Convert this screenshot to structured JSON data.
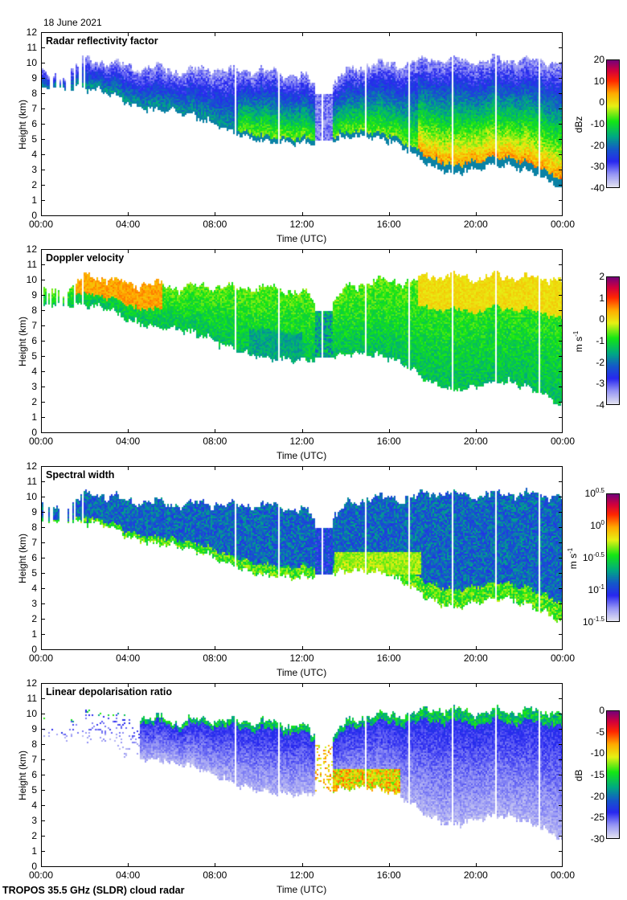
{
  "header": {
    "date": "18 June 2021"
  },
  "footer": {
    "title": "TROPOS 35.5 GHz (SLDR) cloud radar"
  },
  "chart_data": [
    {
      "type": "heatmap",
      "title": "Radar reflectivity factor",
      "xlabel": "Time (UTC)",
      "ylabel": "Height (km)",
      "xticks": [
        "00:00",
        "04:00",
        "08:00",
        "12:00",
        "16:00",
        "20:00",
        "00:00"
      ],
      "yticks": [
        "0",
        "1",
        "2",
        "3",
        "4",
        "5",
        "6",
        "7",
        "8",
        "9",
        "10",
        "11",
        "12"
      ],
      "xlim_hours": [
        0,
        24
      ],
      "ylim_km": [
        0,
        12
      ],
      "colorbar": {
        "unit": "dBz",
        "range": [
          -40,
          20
        ],
        "ticks": [
          "20",
          "10",
          "0",
          "-10",
          "-20",
          "-30",
          "-40"
        ]
      },
      "mode": "reflectivity"
    },
    {
      "type": "heatmap",
      "title": "Doppler velocity",
      "xlabel": "Time (UTC)",
      "ylabel": "Height (km)",
      "xticks": [
        "00:00",
        "04:00",
        "08:00",
        "12:00",
        "16:00",
        "20:00",
        "00:00"
      ],
      "yticks": [
        "0",
        "1",
        "2",
        "3",
        "4",
        "5",
        "6",
        "7",
        "8",
        "9",
        "10",
        "11",
        "12"
      ],
      "xlim_hours": [
        0,
        24
      ],
      "ylim_km": [
        0,
        12
      ],
      "colorbar": {
        "unit": "m s-1",
        "range": [
          -4,
          2
        ],
        "ticks": [
          "2",
          "1",
          "0",
          "-1",
          "-2",
          "-3",
          "-4"
        ]
      },
      "mode": "velocity"
    },
    {
      "type": "heatmap",
      "title": "Spectral width",
      "xlabel": "Time (UTC)",
      "ylabel": "Height (km)",
      "xticks": [
        "00:00",
        "04:00",
        "08:00",
        "12:00",
        "16:00",
        "20:00",
        "00:00"
      ],
      "yticks": [
        "0",
        "1",
        "2",
        "3",
        "4",
        "5",
        "6",
        "7",
        "8",
        "9",
        "10",
        "11",
        "12"
      ],
      "xlim_hours": [
        0,
        24
      ],
      "ylim_km": [
        0,
        12
      ],
      "colorbar": {
        "unit": "m s-1",
        "range_log10": [
          -1.5,
          0.5
        ],
        "ticks": [
          "10^0.5",
          "10^0",
          "10^-0.5",
          "10^-1",
          "10^-1.5"
        ]
      },
      "mode": "width"
    },
    {
      "type": "heatmap",
      "title": "Linear depolarisation ratio",
      "xlabel": "Time (UTC)",
      "ylabel": "Height (km)",
      "xticks": [
        "00:00",
        "04:00",
        "08:00",
        "12:00",
        "16:00",
        "20:00",
        "00:00"
      ],
      "yticks": [
        "0",
        "1",
        "2",
        "3",
        "4",
        "5",
        "6",
        "7",
        "8",
        "9",
        "10",
        "11",
        "12"
      ],
      "xlim_hours": [
        0,
        24
      ],
      "ylim_km": [
        0,
        12
      ],
      "colorbar": {
        "unit": "dB",
        "range": [
          -30,
          0
        ],
        "ticks": [
          "0",
          "-5",
          "-10",
          "-15",
          "-20",
          "-25",
          "-30"
        ]
      },
      "mode": "ldr"
    }
  ],
  "cloud_envelope": {
    "hours": [
      0,
      1,
      2,
      3,
      4,
      5,
      6,
      7,
      8,
      9,
      10,
      11,
      12,
      13,
      14,
      15,
      16,
      17,
      18,
      19,
      20,
      21,
      22,
      23,
      24
    ],
    "top_km": [
      9.3,
      9.3,
      10.3,
      10.2,
      9.8,
      9.8,
      9.6,
      9.6,
      9.7,
      9.5,
      9.6,
      9.4,
      9.3,
      8.0,
      9.5,
      10.0,
      10.0,
      10.0,
      10.4,
      10.3,
      10.2,
      10.3,
      10.3,
      10.2,
      10.2
    ],
    "base_km": [
      8.4,
      8.4,
      8.4,
      8.2,
      7.4,
      7.0,
      6.9,
      6.6,
      6.0,
      5.4,
      5.0,
      4.8,
      4.8,
      4.8,
      5.2,
      5.2,
      5.0,
      4.2,
      3.2,
      2.8,
      3.1,
      3.4,
      3.2,
      2.6,
      1.8
    ],
    "gap_period_hours": 1.0,
    "clear_interval_hours": [
      12.6,
      13.4
    ]
  }
}
